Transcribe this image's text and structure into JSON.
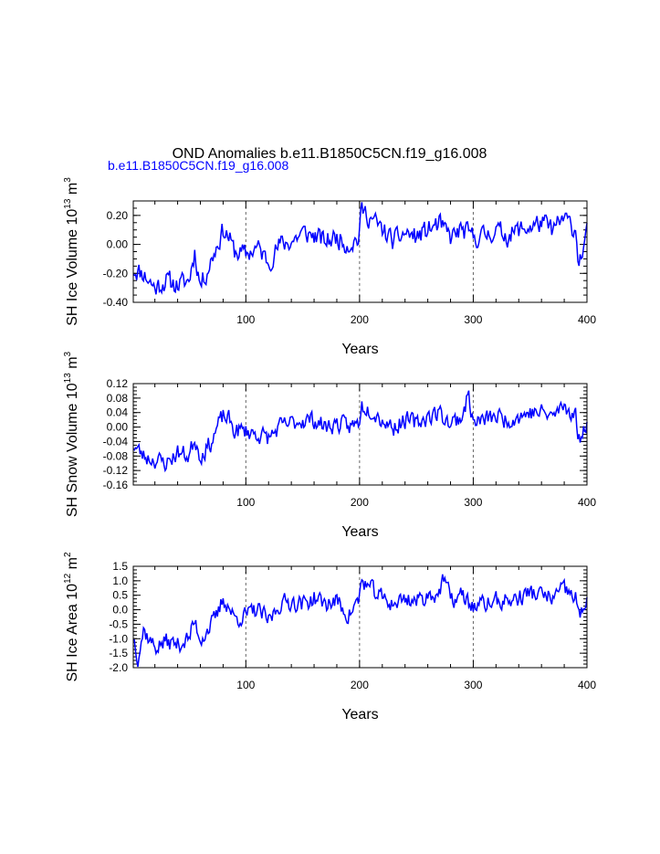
{
  "figure": {
    "title": "OND Anomalies b.e11.B1850C5CN.f19_g16.008",
    "subtitle": "b.e11.B1850C5CN.f19_g16.008",
    "line_color": "#0000ff"
  },
  "chart_data": [
    {
      "type": "line",
      "ylabel_main": "SH Ice Volume 10",
      "ylabel_exp": "13",
      "ylabel_unit": " m",
      "ylabel_unit_exp": "3",
      "xlabel": "Years",
      "xlim": [
        1,
        400
      ],
      "ylim": [
        -0.4,
        0.3
      ],
      "yticks": [
        -0.4,
        -0.2,
        0.0,
        0.2
      ],
      "ytick_labels": [
        "-0.40",
        "-0.20",
        "0.00",
        "0.20"
      ],
      "xticks": [
        100,
        200,
        300,
        400
      ],
      "xtick_labels": [
        "100",
        "200",
        "300",
        "400"
      ],
      "ref_lines": [
        100,
        200,
        300
      ],
      "anchors": [
        [
          1,
          -0.17
        ],
        [
          10,
          -0.2
        ],
        [
          20,
          -0.3
        ],
        [
          30,
          -0.25
        ],
        [
          40,
          -0.28
        ],
        [
          50,
          -0.25
        ],
        [
          55,
          -0.05
        ],
        [
          60,
          -0.28
        ],
        [
          65,
          -0.2
        ],
        [
          70,
          -0.1
        ],
        [
          75,
          0.0
        ],
        [
          80,
          0.1
        ],
        [
          85,
          0.05
        ],
        [
          90,
          -0.05
        ],
        [
          100,
          -0.07
        ],
        [
          110,
          -0.02
        ],
        [
          120,
          -0.12
        ],
        [
          130,
          0.0
        ],
        [
          140,
          0.02
        ],
        [
          150,
          0.08
        ],
        [
          160,
          0.06
        ],
        [
          170,
          0.02
        ],
        [
          180,
          0.05
        ],
        [
          190,
          0.0
        ],
        [
          199,
          0.04
        ],
        [
          202,
          0.24
        ],
        [
          210,
          0.18
        ],
        [
          220,
          0.1
        ],
        [
          230,
          0.02
        ],
        [
          240,
          0.08
        ],
        [
          250,
          0.05
        ],
        [
          260,
          0.1
        ],
        [
          270,
          0.14
        ],
        [
          280,
          0.05
        ],
        [
          290,
          0.1
        ],
        [
          300,
          0.05
        ],
        [
          310,
          0.06
        ],
        [
          320,
          0.1
        ],
        [
          330,
          0.06
        ],
        [
          340,
          0.1
        ],
        [
          350,
          0.12
        ],
        [
          360,
          0.15
        ],
        [
          370,
          0.1
        ],
        [
          380,
          0.18
        ],
        [
          390,
          0.1
        ],
        [
          393,
          -0.13
        ],
        [
          396,
          -0.05
        ],
        [
          400,
          0.07
        ]
      ],
      "amplitude": 0.08,
      "seed": 11
    },
    {
      "type": "line",
      "ylabel_main": "SH Snow Volume 10",
      "ylabel_exp": "13",
      "ylabel_unit": " m",
      "ylabel_unit_exp": "3",
      "xlabel": "Years",
      "xlim": [
        1,
        400
      ],
      "ylim": [
        -0.16,
        0.12
      ],
      "yticks": [
        -0.16,
        -0.12,
        -0.08,
        -0.04,
        0.0,
        0.04,
        0.08,
        0.12
      ],
      "ytick_labels": [
        "-0.16",
        "-0.12",
        "-0.08",
        "-0.04",
        "0.00",
        "0.04",
        "0.08",
        "0.12"
      ],
      "xticks": [
        100,
        200,
        300,
        400
      ],
      "xtick_labels": [
        "100",
        "200",
        "300",
        "400"
      ],
      "ref_lines": [
        100,
        200,
        300
      ],
      "anchors": [
        [
          1,
          -0.05
        ],
        [
          10,
          -0.08
        ],
        [
          20,
          -0.09
        ],
        [
          30,
          -0.1
        ],
        [
          40,
          -0.07
        ],
        [
          50,
          -0.08
        ],
        [
          55,
          -0.03
        ],
        [
          60,
          -0.08
        ],
        [
          70,
          -0.04
        ],
        [
          75,
          0.0
        ],
        [
          80,
          0.03
        ],
        [
          85,
          0.02
        ],
        [
          90,
          -0.01
        ],
        [
          100,
          -0.01
        ],
        [
          110,
          -0.02
        ],
        [
          120,
          -0.03
        ],
        [
          130,
          0.0
        ],
        [
          140,
          0.01
        ],
        [
          150,
          0.02
        ],
        [
          160,
          0.02
        ],
        [
          170,
          0.0
        ],
        [
          180,
          0.01
        ],
        [
          190,
          0.0
        ],
        [
          199,
          0.01
        ],
        [
          202,
          0.06
        ],
        [
          210,
          0.05
        ],
        [
          220,
          0.02
        ],
        [
          230,
          0.0
        ],
        [
          240,
          0.02
        ],
        [
          250,
          0.01
        ],
        [
          260,
          0.03
        ],
        [
          270,
          0.04
        ],
        [
          280,
          0.01
        ],
        [
          290,
          0.03
        ],
        [
          296,
          0.09
        ],
        [
          300,
          0.01
        ],
        [
          310,
          0.02
        ],
        [
          320,
          0.03
        ],
        [
          330,
          0.02
        ],
        [
          340,
          0.03
        ],
        [
          350,
          0.04
        ],
        [
          360,
          0.04
        ],
        [
          370,
          0.03
        ],
        [
          380,
          0.06
        ],
        [
          390,
          0.03
        ],
        [
          394,
          -0.05
        ],
        [
          397,
          0.0
        ],
        [
          400,
          0.02
        ]
      ],
      "amplitude": 0.028,
      "seed": 23
    },
    {
      "type": "line",
      "ylabel_main": "SH Ice Area 10",
      "ylabel_exp": "12",
      "ylabel_unit": " m",
      "ylabel_unit_exp": "2",
      "xlabel": "Years",
      "xlim": [
        1,
        400
      ],
      "ylim": [
        -2.0,
        1.5
      ],
      "yticks": [
        -2.0,
        -1.5,
        -1.0,
        -0.5,
        0.0,
        0.5,
        1.0,
        1.5
      ],
      "ytick_labels": [
        "-2.0",
        "-1.5",
        "-1.0",
        "-0.5",
        "0.0",
        "0.5",
        "1.0",
        "1.5"
      ],
      "xticks": [
        100,
        200,
        300,
        400
      ],
      "xtick_labels": [
        "100",
        "200",
        "300",
        "400"
      ],
      "ref_lines": [
        100,
        200,
        300
      ],
      "anchors": [
        [
          1,
          -0.9
        ],
        [
          5,
          -1.6
        ],
        [
          10,
          -0.7
        ],
        [
          20,
          -1.3
        ],
        [
          30,
          -1.1
        ],
        [
          40,
          -1.2
        ],
        [
          50,
          -1.0
        ],
        [
          55,
          -0.4
        ],
        [
          60,
          -1.0
        ],
        [
          70,
          -0.5
        ],
        [
          75,
          -0.2
        ],
        [
          80,
          0.4
        ],
        [
          85,
          0.1
        ],
        [
          90,
          -0.3
        ],
        [
          100,
          -0.2
        ],
        [
          110,
          0.0
        ],
        [
          120,
          -0.4
        ],
        [
          130,
          0.2
        ],
        [
          140,
          0.3
        ],
        [
          150,
          0.2
        ],
        [
          160,
          0.4
        ],
        [
          170,
          0.2
        ],
        [
          180,
          0.3
        ],
        [
          190,
          -0.2
        ],
        [
          199,
          0.3
        ],
        [
          202,
          1.0
        ],
        [
          210,
          0.7
        ],
        [
          220,
          0.4
        ],
        [
          230,
          0.2
        ],
        [
          240,
          0.4
        ],
        [
          250,
          0.3
        ],
        [
          260,
          0.5
        ],
        [
          270,
          0.6
        ],
        [
          275,
          1.1
        ],
        [
          280,
          0.3
        ],
        [
          290,
          0.5
        ],
        [
          300,
          0.1
        ],
        [
          310,
          0.2
        ],
        [
          320,
          0.3
        ],
        [
          330,
          0.3
        ],
        [
          340,
          0.4
        ],
        [
          350,
          0.6
        ],
        [
          360,
          0.5
        ],
        [
          370,
          0.4
        ],
        [
          380,
          0.7
        ],
        [
          390,
          0.4
        ],
        [
          394,
          -0.3
        ],
        [
          397,
          0.0
        ],
        [
          400,
          0.5
        ]
      ],
      "amplitude": 0.35,
      "seed": 37
    }
  ]
}
